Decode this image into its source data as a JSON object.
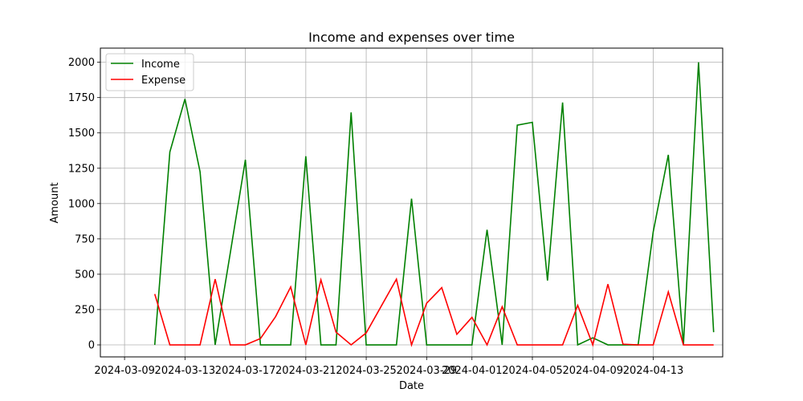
{
  "chart_data": {
    "type": "line",
    "title": "Income and expenses over time",
    "xlabel": "Date",
    "ylabel": "Amount",
    "ylim": [
      -85,
      2100
    ],
    "xlim": [
      "2024-03-07T09:36",
      "2024-04-17T14:24"
    ],
    "grid": true,
    "legend_position": "top-left",
    "x_ticks": [
      "2024-03-09",
      "2024-03-13",
      "2024-03-17",
      "2024-03-21",
      "2024-03-25",
      "2024-03-29",
      "2024-04-01",
      "2024-04-05",
      "2024-04-09",
      "2024-04-13"
    ],
    "y_ticks": [
      0,
      250,
      500,
      750,
      1000,
      1250,
      1500,
      1750,
      2000
    ],
    "x": [
      "2024-03-11",
      "2024-03-12",
      "2024-03-13",
      "2024-03-14",
      "2024-03-15",
      "2024-03-16",
      "2024-03-17",
      "2024-03-18",
      "2024-03-19",
      "2024-03-20",
      "2024-03-21",
      "2024-03-22",
      "2024-03-23",
      "2024-03-24",
      "2024-03-25",
      "2024-03-26",
      "2024-03-27",
      "2024-03-28",
      "2024-03-29",
      "2024-03-30",
      "2024-03-31",
      "2024-04-01",
      "2024-04-02",
      "2024-04-03",
      "2024-04-04",
      "2024-04-05",
      "2024-04-06",
      "2024-04-07",
      "2024-04-08",
      "2024-04-09",
      "2024-04-10",
      "2024-04-11",
      "2024-04-12",
      "2024-04-13",
      "2024-04-14",
      "2024-04-15",
      "2024-04-16",
      "2024-04-17"
    ],
    "series": [
      {
        "name": "Income",
        "color": "#008000",
        "values": [
          0,
          1365,
          1740,
          1225,
          0,
          650,
          1310,
          0,
          0,
          0,
          1335,
          0,
          0,
          1645,
          0,
          0,
          0,
          1035,
          0,
          0,
          0,
          0,
          815,
          0,
          1555,
          1575,
          455,
          1715,
          0,
          50,
          0,
          0,
          0,
          800,
          1345,
          0,
          2000,
          90
        ]
      },
      {
        "name": "Expense",
        "color": "#ff0000",
        "values": [
          360,
          0,
          0,
          0,
          465,
          0,
          0,
          45,
          200,
          410,
          0,
          460,
          90,
          0,
          85,
          275,
          465,
          0,
          295,
          405,
          75,
          195,
          0,
          270,
          0,
          0,
          0,
          0,
          280,
          0,
          430,
          5,
          0,
          0,
          375,
          0,
          0,
          0
        ]
      }
    ]
  }
}
